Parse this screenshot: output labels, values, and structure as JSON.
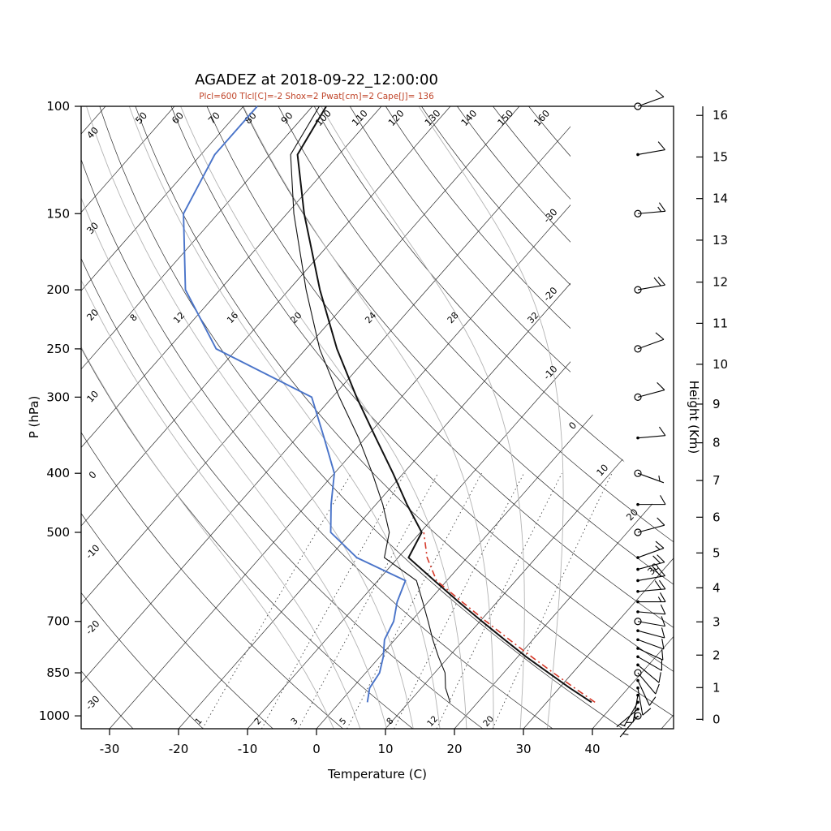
{
  "chart_data": {
    "type": "skewt-logp",
    "title": "AGADEZ at 2018-09-22_12:00:00",
    "subtitle": "Plcl=600 Tlcl[C]=-2 Shox=2 Pwat[cm]=2 Cape[J]= 136",
    "station": "AGADEZ",
    "datetime": "2018-09-22_12:00:00",
    "indices": {
      "Plcl": 600,
      "Tlcl_C": -2,
      "Shox": 2,
      "Pwat_cm": 2,
      "Cape_J": 136
    },
    "xlabel": "Temperature (C)",
    "ylabel": "P (hPa)",
    "ylabel_right": "Height (Km)",
    "axes": {
      "pressure_range_hPa": [
        100,
        1050
      ],
      "pressure_ticks": [
        100,
        150,
        200,
        250,
        300,
        400,
        500,
        700,
        850,
        1000
      ],
      "temp_ticks_C": [
        -30,
        -20,
        -10,
        0,
        10,
        20,
        30,
        40
      ],
      "height_ticks_km": [
        0,
        1,
        2,
        3,
        4,
        5,
        6,
        7,
        8,
        9,
        10,
        11,
        12,
        13,
        14,
        15,
        16
      ],
      "height_tick_pressures_hPa": [
        1013.25,
        898.8,
        795.0,
        701.2,
        616.6,
        540.5,
        472.2,
        411.1,
        356.5,
        308.0,
        265.0,
        227.0,
        194.3,
        165.8,
        141.7,
        121.1,
        103.5
      ]
    },
    "grid": {
      "isotherms_C": [
        -110,
        -100,
        -90,
        -80,
        -70,
        -60,
        -50,
        -40,
        -30,
        -20,
        -10,
        0,
        10,
        20,
        30,
        40,
        50
      ],
      "isotherm_labels_C": [
        -30,
        -20,
        -10,
        0,
        10,
        20,
        30
      ],
      "dry_adiabats_C": [
        -30,
        -20,
        -10,
        0,
        10,
        20,
        30,
        40,
        50,
        60,
        70,
        80,
        90,
        100,
        110,
        120,
        130,
        140,
        150,
        160
      ],
      "dry_adiabat_top_labels": [
        50,
        60,
        70,
        80,
        90,
        100,
        110,
        120,
        130,
        140,
        150,
        160
      ],
      "dry_adiabat_left_labels": [
        40,
        30,
        20,
        10,
        0,
        -10,
        -20,
        -30
      ],
      "moist_adiabats_C": [
        0,
        4,
        8,
        12,
        16,
        20,
        24,
        28,
        32
      ],
      "moist_adiabat_labels": [
        8,
        12,
        16,
        20,
        24,
        28,
        32
      ],
      "moist_label_pressure_hPa": 226,
      "mixing_ratio_g_kg": [
        1,
        2,
        3,
        5,
        8,
        12,
        20
      ]
    },
    "sounding": {
      "pressure_hPa": [
        950,
        900,
        850,
        800,
        750,
        700,
        650,
        600,
        550,
        500,
        450,
        400,
        350,
        300,
        250,
        200,
        150,
        120,
        100
      ],
      "temperature_C": [
        36.5,
        31.5,
        26.5,
        21.2,
        15.9,
        10.3,
        4.4,
        -1.8,
        -8.5,
        -9.8,
        -15.5,
        -21.5,
        -28.5,
        -36.5,
        -45.5,
        -55.5,
        -67.5,
        -76.0,
        -78.0
      ],
      "dewpoint_C": [
        4.0,
        2.5,
        2.0,
        0.5,
        -1.5,
        -2.5,
        -4.5,
        -6.0,
        -16.0,
        -23.0,
        -26.5,
        -30.0,
        -36.0,
        -43.0,
        -63.0,
        -75.0,
        -85.0,
        -88.0,
        -88.0
      ],
      "wetbulb_C": [
        16.0,
        13.5,
        11.5,
        8.5,
        5.5,
        2.5,
        -0.8,
        -4.4,
        -12.0,
        -14.5,
        -19.0,
        -24.5,
        -31.0,
        -39.0,
        -48.0,
        -57.5,
        -69.0,
        -77.0,
        -79.0
      ]
    },
    "parcel": {
      "pressure_hPa": [
        950,
        900,
        850,
        800,
        750,
        700,
        650,
        600,
        550,
        500
      ],
      "temperature_C": [
        37.0,
        32.2,
        27.2,
        22.0,
        16.6,
        10.9,
        4.9,
        -1.5,
        -5.8,
        -9.5
      ]
    },
    "winds": [
      {
        "p": 1000,
        "s": 3,
        "d": 220
      },
      {
        "p": 975,
        "s": 4,
        "d": 230
      },
      {
        "p": 950,
        "s": 5,
        "d": 210
      },
      {
        "p": 925,
        "s": 6,
        "d": 190
      },
      {
        "p": 900,
        "s": 8,
        "d": 170
      },
      {
        "p": 875,
        "s": 8,
        "d": 155
      },
      {
        "p": 850,
        "s": 10,
        "d": 140
      },
      {
        "p": 825,
        "s": 10,
        "d": 130
      },
      {
        "p": 800,
        "s": 12,
        "d": 120
      },
      {
        "p": 775,
        "s": 12,
        "d": 115
      },
      {
        "p": 750,
        "s": 12,
        "d": 110
      },
      {
        "p": 725,
        "s": 10,
        "d": 105
      },
      {
        "p": 700,
        "s": 10,
        "d": 100
      },
      {
        "p": 675,
        "s": 12,
        "d": 95
      },
      {
        "p": 650,
        "s": 15,
        "d": 90
      },
      {
        "p": 625,
        "s": 18,
        "d": 85
      },
      {
        "p": 600,
        "s": 20,
        "d": 80
      },
      {
        "p": 575,
        "s": 18,
        "d": 75
      },
      {
        "p": 550,
        "s": 15,
        "d": 70
      },
      {
        "p": 500,
        "s": 12,
        "d": 75
      },
      {
        "p": 450,
        "s": 8,
        "d": 90
      },
      {
        "p": 400,
        "s": 6,
        "d": 110
      },
      {
        "p": 350,
        "s": 8,
        "d": 85
      },
      {
        "p": 300,
        "s": 10,
        "d": 75
      },
      {
        "p": 250,
        "s": 12,
        "d": 70
      },
      {
        "p": 200,
        "s": 18,
        "d": 80
      },
      {
        "p": 150,
        "s": 15,
        "d": 85
      },
      {
        "p": 120,
        "s": 10,
        "d": 80
      },
      {
        "p": 100,
        "s": 8,
        "d": 70
      }
    ],
    "wind_circle_levels": [
      1000,
      850,
      700,
      500,
      400,
      300,
      250,
      200,
      150,
      100
    ],
    "colors": {
      "temperature": "#111111",
      "dewpoint": "#4a74c9",
      "wetbulb": "#111111",
      "parcel": "#d63a2a",
      "subtitle": "#c0452a",
      "moist_adiabat": "#b3b3b3",
      "grid": "#2b2b2b"
    }
  }
}
